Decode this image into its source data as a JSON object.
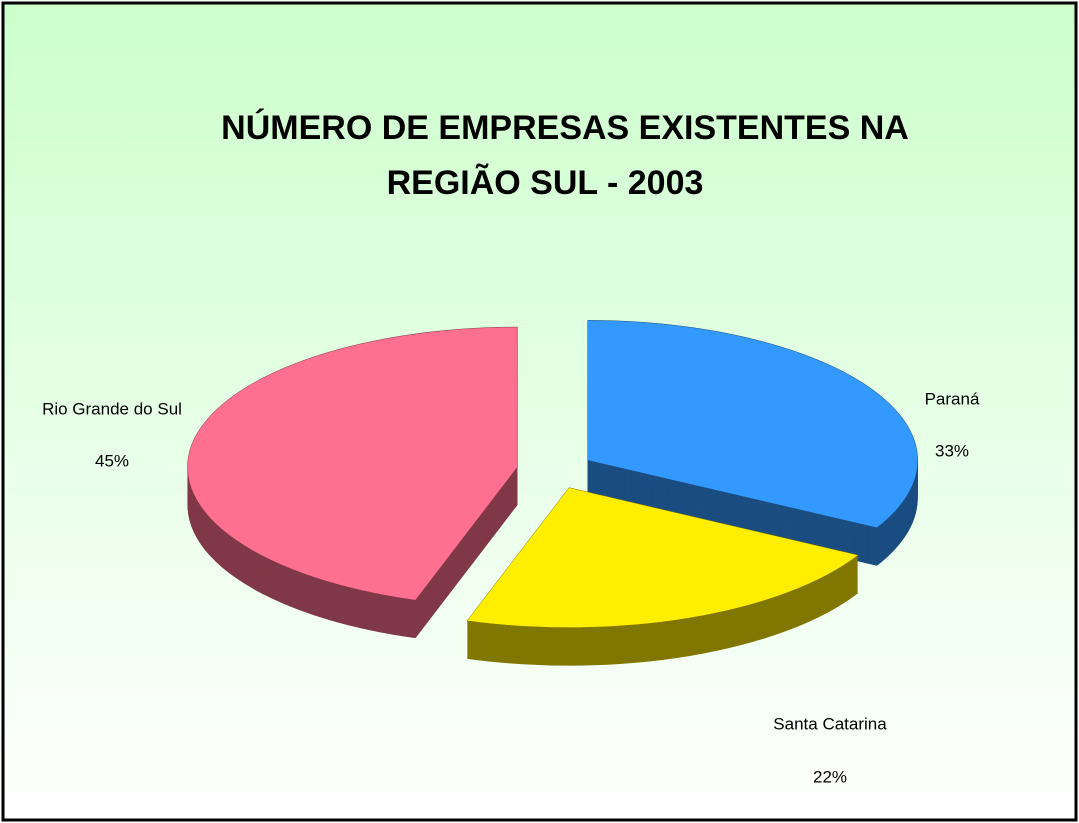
{
  "chart_data": {
    "type": "pie",
    "title": "NÚMERO DE EMPRESAS EXISTENTES NA",
    "subtitle": "REGIÃO SUL - 2003",
    "categories": [
      "Paraná",
      "Santa Catarina",
      "Rio Grande do Sul"
    ],
    "values": [
      33,
      22,
      45
    ],
    "value_labels": [
      "33%",
      "22%",
      "45%"
    ],
    "colors": [
      "#3399ff",
      "#ffee00",
      "#ff6f8f"
    ],
    "exploded": true,
    "three_d": true
  }
}
